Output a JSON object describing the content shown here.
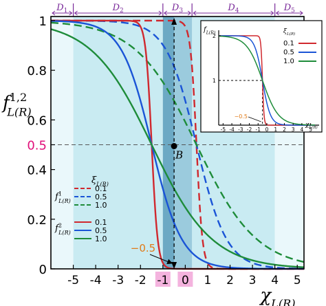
{
  "chart_data": [
    {
      "type": "line",
      "title": "",
      "xlabel": "χ_L(R)",
      "ylabel": "f^{1,2}_{L(R)}",
      "xlim": [
        -6,
        5.3
      ],
      "ylim": [
        0,
        1
      ],
      "xticks": [
        -5,
        -4,
        -3,
        -2,
        -1,
        0,
        1,
        2,
        3,
        4,
        5
      ],
      "xtick_labels": [
        "-5",
        "-4",
        "-3",
        "-2",
        "-1",
        "0",
        "1",
        "2",
        "3",
        "4",
        "5"
      ],
      "highlighted_xticks": [
        -1,
        0
      ],
      "yticks": [
        0,
        0.2,
        0.4,
        0.5,
        0.6,
        0.8,
        1
      ],
      "ytick_labels": [
        "0",
        "0.2",
        "0.4",
        "0.5",
        "0.6",
        "0.8",
        "1"
      ],
      "highlighted_ytick": 0.5,
      "grid": false,
      "legend_placement": "lower-left",
      "legend": {
        "header": "ξ_L(R)",
        "group1_label": "f^1_L(R)",
        "group2_label": "f^2_L(R)",
        "xi_values": [
          "0.1",
          "0.5",
          "1.0"
        ]
      },
      "regions": [
        {
          "name": "D1",
          "x": [
            -6,
            -5
          ]
        },
        {
          "name": "D2",
          "x": [
            -5,
            -1
          ]
        },
        {
          "name": "D3",
          "x": [
            -1,
            0.3
          ]
        },
        {
          "name": "D4",
          "x": [
            0.3,
            4
          ]
        },
        {
          "name": "D5",
          "x": [
            4,
            5.3
          ]
        }
      ],
      "series": [
        {
          "group": "f1",
          "xi": 0.1,
          "color": "#d0282e",
          "dash": true,
          "center": 0.5
        },
        {
          "group": "f1",
          "xi": 0.5,
          "color": "#1a54d6",
          "dash": true,
          "center": 0.5
        },
        {
          "group": "f1",
          "xi": 1.0,
          "color": "#1e8c3a",
          "dash": true,
          "center": 0.5
        },
        {
          "group": "f2",
          "xi": 0.1,
          "color": "#d0282e",
          "dash": false,
          "center": -1.5
        },
        {
          "group": "f2",
          "xi": 0.5,
          "color": "#1a54d6",
          "dash": false,
          "center": -1.5
        },
        {
          "group": "f2",
          "xi": 1.0,
          "color": "#1e8c3a",
          "dash": false,
          "center": -1.5
        }
      ],
      "annotations": {
        "point_label": "B",
        "point_x": -0.5,
        "point_y": 0.5,
        "arrow_label": "−0.5",
        "arrow_x": -0.5
      }
    },
    {
      "type": "line",
      "title": "",
      "xlabel": "χ_L(R)",
      "ylabel": "f_L(R)",
      "xlim": [
        -5.5,
        5.5
      ],
      "ylim": [
        0,
        2
      ],
      "xticks": [
        -5,
        -4,
        -3,
        -2,
        -1,
        0,
        1,
        2,
        3,
        4,
        5
      ],
      "xtick_labels": [
        "-5",
        "-4",
        "-3",
        "-2",
        "-1",
        "0",
        "1",
        "2",
        "3",
        "4",
        "5"
      ],
      "yticks": [
        1,
        2
      ],
      "ytick_labels": [
        "1",
        "2"
      ],
      "legend_placement": "top-right",
      "legend": {
        "header": "ξ_L(R)",
        "xi_values": [
          "0.1",
          "0.5",
          "1.0"
        ]
      },
      "series": [
        {
          "xi": 0.1,
          "color": "#d0282e",
          "center": -0.5,
          "amplitude": 2
        },
        {
          "xi": 0.5,
          "color": "#1a54d6",
          "center": -0.5,
          "amplitude": 2
        },
        {
          "xi": 1.0,
          "color": "#1e8c3a",
          "center": -0.5,
          "amplitude": 2
        }
      ],
      "annotations": {
        "arrow_label": "−0.5",
        "arrow_x": -0.5
      }
    }
  ]
}
